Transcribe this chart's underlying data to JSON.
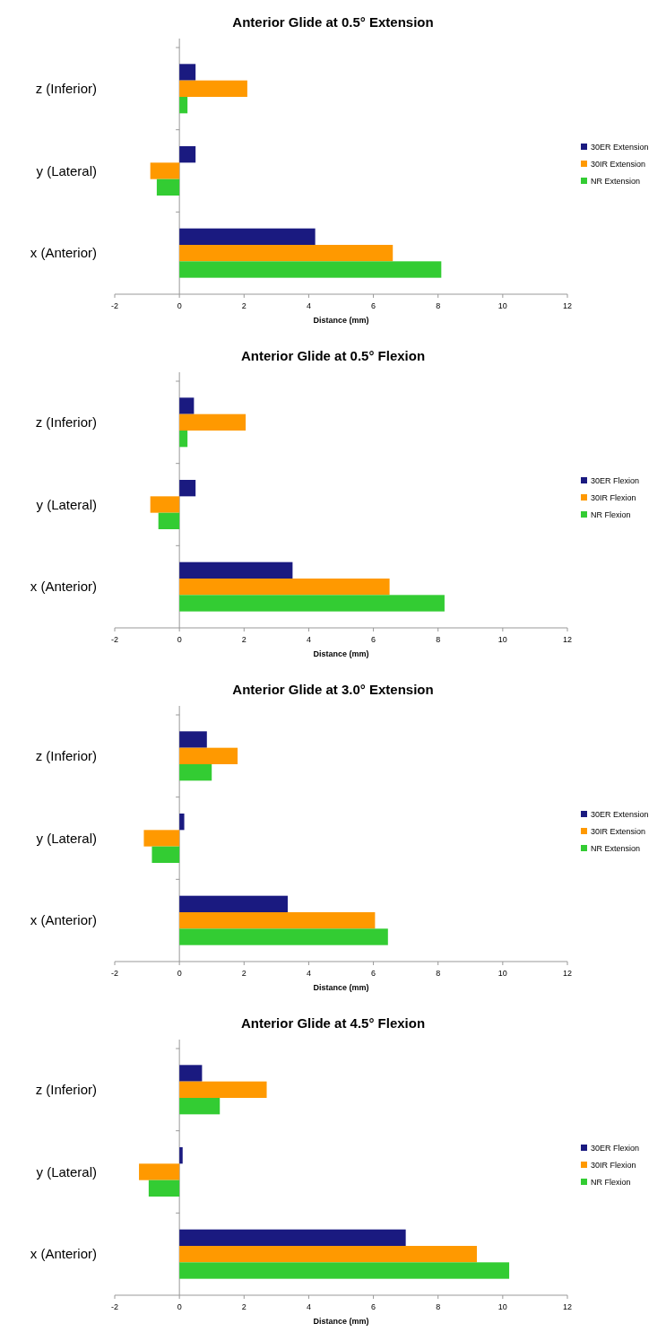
{
  "chart_data": [
    {
      "type": "bar",
      "orientation": "horizontal",
      "title": "Anterior Glide at 0.5° Extension",
      "xlabel": "Distance (mm)",
      "categories": [
        "z (Inferior)",
        "y (Lateral)",
        "x (Anterior)"
      ],
      "xlim": [
        -2,
        12
      ],
      "xticks": [
        -2,
        0,
        2,
        4,
        6,
        8,
        10,
        12
      ],
      "legend": "right",
      "series": [
        {
          "name": "30ER Extension",
          "color": "#1a1a80",
          "values": [
            0.5,
            0.5,
            4.2
          ]
        },
        {
          "name": "30IR Extension",
          "color": "#ff9900",
          "values": [
            2.1,
            -0.9,
            6.6
          ]
        },
        {
          "name": "NR Extension",
          "color": "#33cc33",
          "values": [
            0.25,
            -0.7,
            8.1
          ]
        }
      ]
    },
    {
      "type": "bar",
      "orientation": "horizontal",
      "title": "Anterior Glide at 0.5° Flexion",
      "xlabel": "Distance (mm)",
      "categories": [
        "z (Inferior)",
        "y (Lateral)",
        "x (Anterior)"
      ],
      "xlim": [
        -2,
        12
      ],
      "xticks": [
        -2,
        0,
        2,
        4,
        6,
        8,
        10,
        12
      ],
      "legend": "right",
      "series": [
        {
          "name": "30ER Flexion",
          "color": "#1a1a80",
          "values": [
            0.45,
            0.5,
            3.5
          ]
        },
        {
          "name": "30IR Flexion",
          "color": "#ff9900",
          "values": [
            2.05,
            -0.9,
            6.5
          ]
        },
        {
          "name": "NR Flexion",
          "color": "#33cc33",
          "values": [
            0.25,
            -0.65,
            8.2
          ]
        }
      ]
    },
    {
      "type": "bar",
      "orientation": "horizontal",
      "title": "Anterior Glide at 3.0° Extension",
      "xlabel": "Distance (mm)",
      "categories": [
        "z (Inferior)",
        "y (Lateral)",
        "x (Anterior)"
      ],
      "xlim": [
        -2,
        12
      ],
      "xticks": [
        -2,
        0,
        2,
        4,
        6,
        8,
        10,
        12
      ],
      "legend": "right",
      "series": [
        {
          "name": "30ER Extension",
          "color": "#1a1a80",
          "values": [
            0.85,
            0.15,
            3.35
          ]
        },
        {
          "name": "30IR Extension",
          "color": "#ff9900",
          "values": [
            1.8,
            -1.1,
            6.05
          ]
        },
        {
          "name": "NR Extension",
          "color": "#33cc33",
          "values": [
            1.0,
            -0.85,
            6.45
          ]
        }
      ]
    },
    {
      "type": "bar",
      "orientation": "horizontal",
      "title": "Anterior Glide at 4.5° Flexion",
      "xlabel": "Distance (mm)",
      "categories": [
        "z (Inferior)",
        "y (Lateral)",
        "x (Anterior)"
      ],
      "xlim": [
        -2,
        12
      ],
      "xticks": [
        -2,
        0,
        2,
        4,
        6,
        8,
        10,
        12
      ],
      "legend": "right",
      "series": [
        {
          "name": "30ER Flexion",
          "color": "#1a1a80",
          "values": [
            0.7,
            0.1,
            7.0
          ]
        },
        {
          "name": "30IR Flexion",
          "color": "#ff9900",
          "values": [
            2.7,
            -1.25,
            9.2
          ]
        },
        {
          "name": "NR Flexion",
          "color": "#33cc33",
          "values": [
            1.25,
            -0.95,
            10.2
          ]
        }
      ]
    }
  ]
}
